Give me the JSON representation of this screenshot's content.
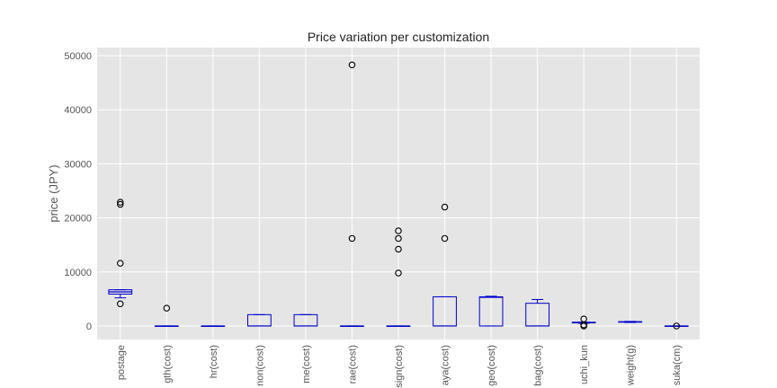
{
  "chart_data": {
    "type": "boxplot",
    "title": "Price variation per customization",
    "xlabel": "",
    "ylabel": "price (JPY)",
    "ylim": [
      -2500,
      51500
    ],
    "yticks": [
      0,
      10000,
      20000,
      30000,
      40000,
      50000
    ],
    "grid": true,
    "colors": {
      "background": "#e5e5e5",
      "grid": "#ffffff",
      "box": "#0000cc",
      "median": "#0000cc",
      "outlier": "#000000"
    },
    "categories": [
      "postage",
      "gth(cost)",
      "hr(cost)",
      "non(cost)",
      "me(cost)",
      "rae(cost)",
      "sign(cost)",
      "aya(cost)",
      "geo(cost)",
      "bag(cost)",
      "uchi_kun",
      "weight(g)",
      "suka(cm)"
    ],
    "boxes": [
      {
        "min": 5200,
        "q1": 5900,
        "median": 6300,
        "q3": 6700,
        "max": 6700,
        "outliers": [
          4100,
          11600,
          22500,
          22900
        ]
      },
      {
        "min": 0,
        "q1": 0,
        "median": 0,
        "q3": 0,
        "max": 0,
        "outliers": [
          3300
        ]
      },
      {
        "min": 0,
        "q1": 0,
        "median": 0,
        "q3": 0,
        "max": 0,
        "outliers": []
      },
      {
        "min": 0,
        "q1": 0,
        "median": 0,
        "q3": 2100,
        "max": 2100,
        "outliers": []
      },
      {
        "min": 0,
        "q1": 0,
        "median": 0,
        "q3": 2100,
        "max": 2100,
        "outliers": []
      },
      {
        "min": 0,
        "q1": 0,
        "median": 0,
        "q3": 0,
        "max": 0,
        "outliers": [
          16200,
          48300
        ]
      },
      {
        "min": 0,
        "q1": 0,
        "median": 0,
        "q3": 0,
        "max": 0,
        "outliers": [
          9800,
          14200,
          16200,
          17600
        ]
      },
      {
        "min": 0,
        "q1": 0,
        "median": 0,
        "q3": 5400,
        "max": 5400,
        "outliers": [
          16200,
          22000
        ]
      },
      {
        "min": 0,
        "q1": 0,
        "median": 5300,
        "q3": 5400,
        "max": 5500,
        "outliers": []
      },
      {
        "min": 0,
        "q1": 0,
        "median": 0,
        "q3": 4200,
        "max": 4900,
        "outliers": []
      },
      {
        "min": 500,
        "q1": 600,
        "median": 600,
        "q3": 700,
        "max": 700,
        "outliers": [
          0,
          200,
          1300
        ]
      },
      {
        "min": 650,
        "q1": 700,
        "median": 750,
        "q3": 800,
        "max": 850,
        "outliers": []
      },
      {
        "min": 0,
        "q1": 0,
        "median": 0,
        "q3": 0,
        "max": 0,
        "outliers": [
          0
        ]
      }
    ]
  }
}
